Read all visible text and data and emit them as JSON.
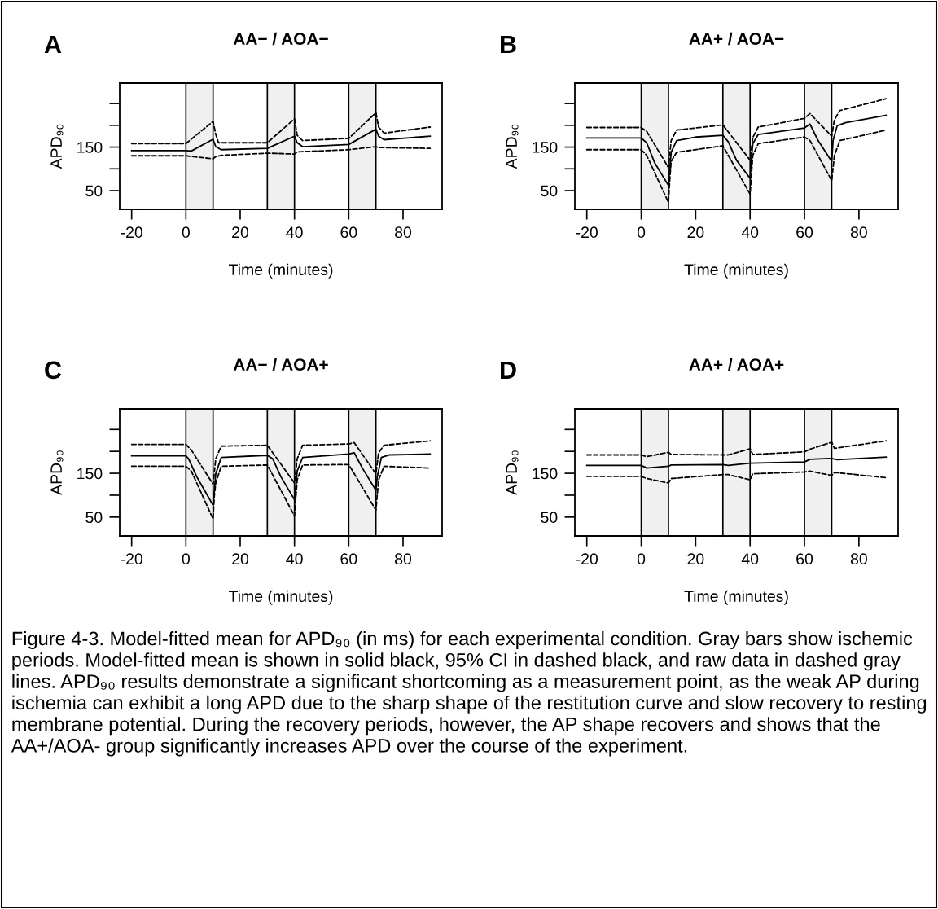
{
  "chart_data": [
    {
      "type": "line",
      "title": "AA− / AOA−",
      "xlabel": "Time (minutes)",
      "ylabel": "APD₉₀",
      "annotations": [
        "A"
      ],
      "xlim": [
        -24.4,
        94.4
      ],
      "xticks": [
        -20,
        0,
        20,
        40,
        60,
        80
      ],
      "ylim": [
        7,
        297
      ],
      "yticks": [
        50,
        {
          "value": 100,
          "label": null
        },
        150,
        {
          "value": 200,
          "label": null
        },
        {
          "value": 250,
          "label": null
        }
      ],
      "grid": false,
      "bands": [
        {
          "axis": "x",
          "from": 0,
          "to": 10,
          "color": "#f0f0f0"
        },
        {
          "axis": "x",
          "from": 30,
          "to": 40,
          "color": "#f0f0f0"
        },
        {
          "axis": "x",
          "from": 60,
          "to": 70,
          "color": "#f0f0f0"
        }
      ],
      "series": [
        {
          "color": "#000000",
          "line_style": "solid",
          "x": [
            -20,
            0,
            2,
            10,
            11,
            13,
            30,
            40,
            41,
            43,
            60,
            70,
            71,
            73,
            90
          ],
          "values": [
            142,
            142,
            141,
            168,
            151,
            144,
            147,
            175,
            160,
            151,
            156,
            191,
            175,
            167,
            175
          ]
        },
        {
          "color": "#000000",
          "line_style": "dashed",
          "x": [
            -20,
            0,
            10,
            11,
            12,
            30,
            40,
            41,
            43,
            60,
            70,
            71,
            73,
            90
          ],
          "values": [
            158,
            158,
            209,
            179,
            160,
            160,
            215,
            177,
            165,
            170,
            229,
            196,
            182,
            196
          ]
        },
        {
          "color": "#000000",
          "line_style": "dashed",
          "x": [
            -20,
            0,
            10,
            11,
            13,
            30,
            40,
            41,
            60,
            70,
            71,
            90
          ],
          "values": [
            130,
            130,
            123,
            128,
            131,
            136,
            134,
            139,
            144,
            151,
            149,
            147
          ]
        }
      ]
    },
    {
      "type": "line",
      "title": "AA+ / AOA−",
      "xlabel": "Time (minutes)",
      "ylabel": "APD₉₀",
      "annotations": [
        "B"
      ],
      "xlim": [
        -24.4,
        94.4
      ],
      "xticks": [
        -20,
        0,
        20,
        40,
        60,
        80
      ],
      "ylim": [
        7,
        297
      ],
      "yticks": [
        50,
        {
          "value": 100,
          "label": null
        },
        150,
        {
          "value": 200,
          "label": null
        },
        {
          "value": 250,
          "label": null
        }
      ],
      "grid": false,
      "bands": [
        {
          "axis": "x",
          "from": 0,
          "to": 10,
          "color": "#f0f0f0"
        },
        {
          "axis": "x",
          "from": 30,
          "to": 40,
          "color": "#f0f0f0"
        },
        {
          "axis": "x",
          "from": 60,
          "to": 70,
          "color": "#f0f0f0"
        }
      ],
      "series": [
        {
          "color": "#000000",
          "line_style": "solid",
          "x": [
            -20,
            0,
            2,
            5,
            10,
            10.5,
            11,
            13,
            20,
            30,
            32,
            35,
            40,
            40.5,
            41,
            43,
            60,
            62,
            65,
            70,
            70.5,
            72,
            75,
            90
          ],
          "values": [
            171,
            171,
            160,
            113,
            62,
            103,
            138,
            165,
            173,
            177,
            162,
            120,
            78,
            124,
            158,
            179,
            194,
            203,
            165,
            117,
            165,
            199,
            206,
            223
          ]
        },
        {
          "color": "#000000",
          "line_style": "dashed",
          "x": [
            -20,
            0,
            2,
            10,
            11,
            13,
            30,
            40,
            41,
            43,
            60,
            62,
            70,
            71,
            73,
            90
          ],
          "values": [
            195,
            195,
            186,
            103,
            165,
            189,
            201,
            120,
            172,
            196,
            216,
            227,
            175,
            213,
            234,
            261
          ]
        },
        {
          "color": "#000000",
          "line_style": "dashed",
          "x": [
            -20,
            0,
            2,
            10,
            10.5,
            11,
            13,
            30,
            40,
            41,
            43,
            60,
            62,
            70,
            71,
            73,
            90
          ],
          "values": [
            144,
            144,
            131,
            23,
            76,
            117,
            138,
            153,
            42,
            131,
            158,
            173,
            165,
            73,
            131,
            165,
            189
          ]
        }
      ]
    },
    {
      "type": "line",
      "title": "AA− / AOA+",
      "xlabel": "Time (minutes)",
      "ylabel": "APD₉₀",
      "annotations": [
        "C"
      ],
      "xlim": [
        -24.4,
        94.4
      ],
      "xticks": [
        -20,
        0,
        20,
        40,
        60,
        80
      ],
      "ylim": [
        7,
        297
      ],
      "yticks": [
        50,
        {
          "value": 100,
          "label": null
        },
        150,
        {
          "value": 200,
          "label": null
        },
        {
          "value": 250,
          "label": null
        }
      ],
      "grid": false,
      "bands": [
        {
          "axis": "x",
          "from": 0,
          "to": 10,
          "color": "#f0f0f0"
        },
        {
          "axis": "x",
          "from": 30,
          "to": 40,
          "color": "#f0f0f0"
        },
        {
          "axis": "x",
          "from": 60,
          "to": 70,
          "color": "#f0f0f0"
        }
      ],
      "series": [
        {
          "color": "#000000",
          "line_style": "solid",
          "x": [
            -20,
            0,
            1,
            4,
            10,
            10.5,
            11,
            13,
            30,
            32,
            35,
            40,
            40.5,
            41,
            43,
            60,
            62,
            65,
            70,
            70.5,
            72,
            75,
            90
          ],
          "values": [
            190,
            190,
            183,
            142,
            77,
            114,
            149,
            186,
            191,
            183,
            142,
            90,
            121,
            155,
            186,
            194,
            197,
            162,
            111,
            142,
            186,
            192,
            194
          ]
        },
        {
          "color": "#000000",
          "line_style": "dashed",
          "x": [
            -20,
            0,
            2,
            10,
            11,
            13,
            30,
            40,
            41,
            43,
            60,
            62,
            70,
            71,
            73,
            90
          ],
          "values": [
            216,
            216,
            203,
            125,
            183,
            212,
            214,
            128,
            183,
            214,
            217,
            220,
            149,
            197,
            214,
            224
          ]
        },
        {
          "color": "#000000",
          "line_style": "dashed",
          "x": [
            -20,
            0,
            2,
            10,
            10.5,
            11,
            13,
            30,
            40,
            41,
            43,
            60,
            70,
            71,
            73,
            90
          ],
          "values": [
            166,
            166,
            155,
            46,
            101,
            128,
            166,
            169,
            53,
            135,
            169,
            170,
            66,
            135,
            166,
            162
          ]
        }
      ]
    },
    {
      "type": "line",
      "title": "AA+ / AOA+",
      "xlabel": "Time (minutes)",
      "ylabel": "APD₉₀",
      "annotations": [
        "D",
        "Figure 4-3. Model-fitted mean for APD₉₀ (in ms) for each experimental condition. Gray bars show ischemic periods. Model-fitted mean is shown in solid black, 95% CI in dashed black, and raw data in dashed gray lines. APD₉₀ results demonstrate a significant shortcoming as a measurement point, as the weak AP during ischemia can exhibit a long APD due to the sharp shape of the restitution curve and slow recovery to resting membrane potential. During the recovery periods, however, the AP shape recovers and shows that the AA+/AOA- group significantly increases APD over the course of the experiment."
      ],
      "xlim": [
        -24.4,
        94.4
      ],
      "xticks": [
        -20,
        0,
        20,
        40,
        60,
        80
      ],
      "ylim": [
        7,
        297
      ],
      "yticks": [
        50,
        {
          "value": 100,
          "label": null
        },
        150,
        {
          "value": 200,
          "label": null
        },
        {
          "value": 250,
          "label": null
        }
      ],
      "grid": false,
      "bands": [
        {
          "axis": "x",
          "from": 0,
          "to": 10,
          "color": "#f0f0f0"
        },
        {
          "axis": "x",
          "from": 30,
          "to": 40,
          "color": "#f0f0f0"
        },
        {
          "axis": "x",
          "from": 60,
          "to": 70,
          "color": "#f0f0f0"
        }
      ],
      "series": [
        {
          "color": "#000000",
          "line_style": "solid",
          "x": [
            -20,
            0,
            2,
            10,
            11,
            30,
            32,
            40,
            60,
            62,
            70,
            72,
            90
          ],
          "values": [
            168,
            168,
            162,
            166,
            169,
            170,
            168,
            173,
            176,
            182,
            184,
            181,
            187
          ]
        },
        {
          "color": "#000000",
          "line_style": "dashed",
          "x": [
            -20,
            0,
            2,
            10,
            11,
            30,
            32,
            40,
            41,
            60,
            62,
            70,
            71,
            90
          ],
          "values": [
            192,
            192,
            188,
            198,
            193,
            192,
            192,
            206,
            193,
            199,
            205,
            221,
            207,
            224
          ]
        },
        {
          "color": "#000000",
          "line_style": "dashed",
          "x": [
            -20,
            0,
            2,
            10,
            11,
            30,
            32,
            40,
            41,
            60,
            62,
            70,
            71,
            90
          ],
          "values": [
            143,
            143,
            138,
            128,
            138,
            147,
            147,
            135,
            149,
            153,
            155,
            145,
            152,
            140
          ]
        }
      ]
    }
  ]
}
